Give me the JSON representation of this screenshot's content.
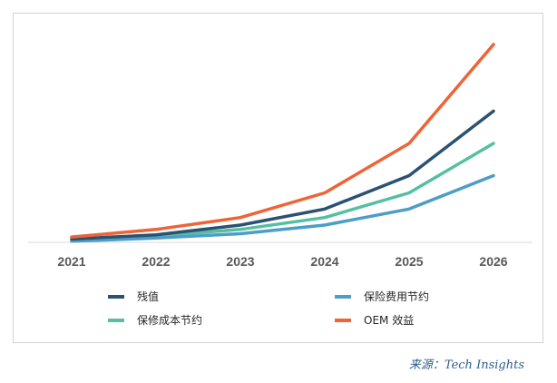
{
  "chart_data": {
    "type": "line",
    "title": "",
    "xlabel": "",
    "ylabel": "",
    "x": [
      "2021",
      "2022",
      "2023",
      "2024",
      "2025",
      "2026"
    ],
    "ylim": [
      0,
      100
    ],
    "grid": false,
    "legend_position": "bottom",
    "series": [
      {
        "name": "残值",
        "color": "#2b5174",
        "values": [
          1.5,
          3.5,
          8,
          15.5,
          31,
          61
        ]
      },
      {
        "name": "保险费用节约",
        "color": "#4c9ec6",
        "values": [
          0.5,
          2,
          4,
          8,
          15.5,
          31
        ]
      },
      {
        "name": "保修成本节约",
        "color": "#55bfa2",
        "values": [
          1,
          3,
          6,
          11.5,
          23,
          46
        ]
      },
      {
        "name": "OEM 效益",
        "color": "#ee6436",
        "values": [
          2.5,
          6,
          11.5,
          23,
          46,
          92
        ]
      }
    ]
  },
  "source": {
    "text": "来源：Tech Insights"
  }
}
